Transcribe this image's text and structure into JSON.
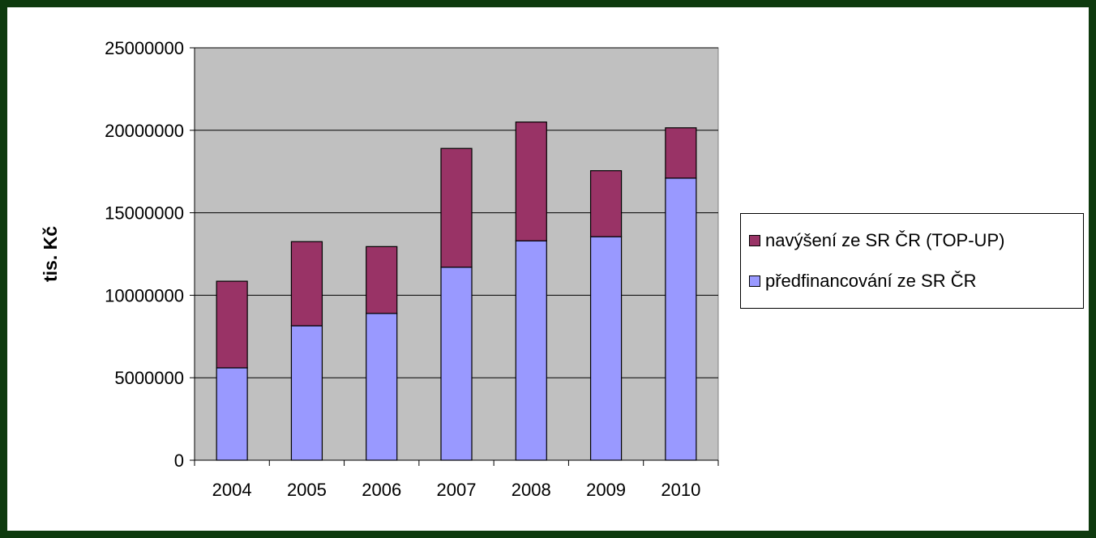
{
  "chart_data": {
    "type": "bar",
    "stacked": true,
    "categories": [
      "2004",
      "2005",
      "2006",
      "2007",
      "2008",
      "2009",
      "2010"
    ],
    "series": [
      {
        "name": "předfinancování ze SR ČR",
        "color": "#9999ff",
        "values": [
          5600000,
          8150000,
          8900000,
          11700000,
          13300000,
          13550000,
          17100000
        ]
      },
      {
        "name": "navýšení ze SR ČR (TOP-UP)",
        "color": "#993366",
        "values": [
          5250000,
          5100000,
          4050000,
          7200000,
          7200000,
          4000000,
          3050000
        ]
      }
    ],
    "ylabel": "tis. Kč",
    "ylim": [
      0,
      25000000
    ],
    "yticks": [
      "0",
      "5000000",
      "10000000",
      "15000000",
      "20000000",
      "25000000"
    ],
    "grid": true,
    "plot_background": "#c0c0c0",
    "legend_position": "right"
  },
  "legend": {
    "items": [
      {
        "label": "navýšení ze SR ČR (TOP-UP)",
        "color": "#993366"
      },
      {
        "label": "předfinancování ze SR ČR",
        "color": "#9999ff"
      }
    ]
  }
}
